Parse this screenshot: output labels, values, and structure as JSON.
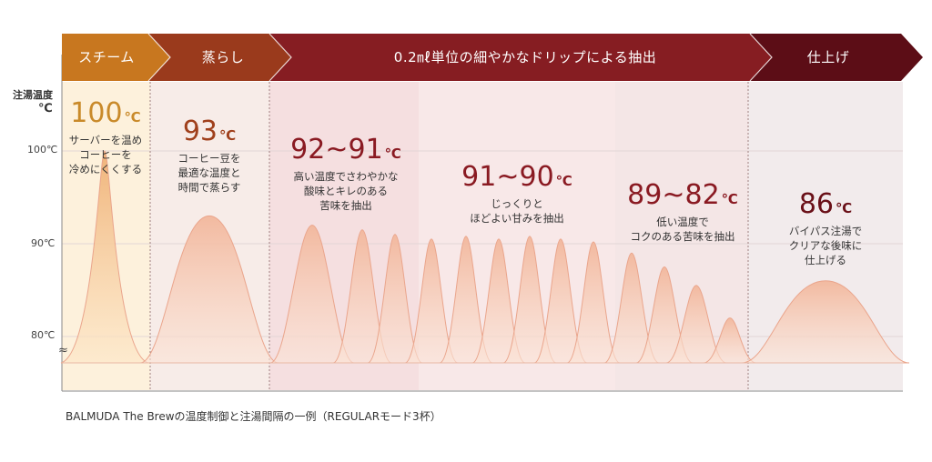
{
  "stages": [
    {
      "label": "スチーム",
      "color": "#c8771f"
    },
    {
      "label": "蒸らし",
      "color": "#9a3a1c"
    },
    {
      "label": "0.2㎖単位の細やかなドリップによる抽出",
      "color": "#861d22"
    },
    {
      "label": "仕上げ",
      "color": "#5c0d16"
    }
  ],
  "y_axis": {
    "title": "注湯温度",
    "unit": "℃",
    "ticks": [
      "100℃",
      "90℃",
      "80℃"
    ],
    "break_symbol": "≈"
  },
  "annotations": [
    {
      "temp": "100",
      "unit": "℃",
      "desc": "サーバーを温め\nコーヒーを\n冷めにくくする",
      "color": "#c98a2a"
    },
    {
      "temp": "93",
      "unit": "℃",
      "desc": "コーヒー豆を\n最適な温度と\n時間で蒸らす",
      "color": "#a0401c"
    },
    {
      "temp": "92~91",
      "unit": "℃",
      "desc": "高い温度でさわやかな\n酸味とキレのある\n苦味を抽出",
      "color": "#8a1a22"
    },
    {
      "temp": "91~90",
      "unit": "℃",
      "desc": "じっくりと\nほどよい甘みを抽出",
      "color": "#8a1a22"
    },
    {
      "temp": "89~82",
      "unit": "℃",
      "desc": "低い温度で\nコクのある苦味を抽出",
      "color": "#8a1a22"
    },
    {
      "temp": "86",
      "unit": "℃",
      "desc": "バイパス注湯で\nクリアな後味に\n仕上げる",
      "color": "#6a1018"
    }
  ],
  "caption": "BALMUDA The Brewの温度制御と注湯間隔の一例（REGULARモード3杯）",
  "chart_data": {
    "type": "area",
    "title": "",
    "xlabel": "",
    "ylabel": "注湯温度 ℃",
    "y_ticks": [
      100,
      90,
      80
    ],
    "ylim": [
      77,
      100
    ],
    "grid": true,
    "series": [
      {
        "values": [
          100,
          93,
          92,
          91.5,
          91,
          90.5,
          90.8,
          90.5,
          90.8,
          90.5,
          90.2,
          89,
          87.5,
          85.5,
          82,
          86
        ]
      }
    ]
  }
}
